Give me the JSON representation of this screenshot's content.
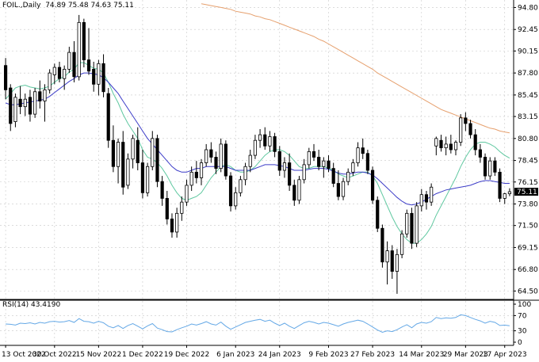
{
  "header": {
    "symbol": "FOIL.",
    "timeframe": "Daily",
    "open": "74.89",
    "high": "75.48",
    "low": "74.63",
    "close": "75.11"
  },
  "rsi_header": {
    "label": "RSI(14)",
    "value": "43.4190"
  },
  "colors": {
    "background": "#ffffff",
    "grid": "#c8c8c8",
    "candle": "#000000",
    "ma_fast": "#5fc8a0",
    "ma_mid": "#3c3cc8",
    "ma_slow": "#e6a06e",
    "rsi_line": "#64a8e6",
    "current_price_tag": "#000000"
  },
  "chart_data": [
    {
      "type": "candlestick",
      "title": "FOIL., Daily",
      "current_price_label": "75.11",
      "y_ticks": [
        "94.80",
        "92.45",
        "90.15",
        "87.80",
        "85.45",
        "83.15",
        "80.80",
        "78.45",
        "76.15",
        "73.80",
        "71.50",
        "69.15",
        "66.80",
        "64.50"
      ],
      "x_ticks": [
        "13 Oct 2022",
        "30 Oct 2022",
        "15 Nov 2022",
        "1 Dec 2022",
        "19 Dec 2022",
        "6 Jan 2023",
        "24 Jan 2023",
        "9 Feb 2023",
        "27 Feb 2023",
        "14 Mar 2023",
        "29 Mar 2023",
        "17 Apr 2023"
      ],
      "ylim": [
        63.6,
        95.6
      ],
      "grid": true,
      "candles": [
        [
          88.6,
          89.4,
          85.0,
          86.0
        ],
        [
          86.2,
          86.6,
          81.6,
          82.4
        ],
        [
          82.6,
          85.6,
          82.0,
          85.2
        ],
        [
          85.0,
          86.4,
          83.4,
          84.2
        ],
        [
          84.2,
          85.6,
          83.2,
          85.0
        ],
        [
          85.2,
          86.0,
          82.6,
          83.4
        ],
        [
          83.4,
          86.2,
          83.0,
          85.8
        ],
        [
          85.8,
          87.0,
          84.0,
          84.8
        ],
        [
          84.8,
          86.6,
          82.6,
          86.0
        ],
        [
          86.0,
          88.2,
          85.6,
          87.8
        ],
        [
          87.6,
          88.8,
          86.6,
          88.4
        ],
        [
          88.4,
          89.0,
          86.8,
          87.2
        ],
        [
          87.2,
          88.6,
          86.0,
          88.2
        ],
        [
          88.2,
          90.6,
          87.8,
          90.0
        ],
        [
          90.0,
          91.2,
          86.8,
          87.4
        ],
        [
          87.4,
          94.0,
          87.0,
          93.2
        ],
        [
          93.2,
          93.6,
          88.4,
          89.2
        ],
        [
          89.2,
          92.6,
          87.6,
          88.0
        ],
        [
          88.2,
          89.0,
          85.8,
          86.6
        ],
        [
          86.6,
          89.2,
          85.4,
          88.8
        ],
        [
          88.8,
          89.8,
          85.2,
          85.8
        ],
        [
          85.6,
          86.2,
          79.8,
          80.6
        ],
        [
          80.6,
          82.2,
          77.2,
          77.8
        ],
        [
          77.8,
          80.8,
          76.0,
          80.4
        ],
        [
          80.4,
          81.6,
          74.8,
          75.6
        ],
        [
          75.8,
          79.2,
          75.4,
          78.6
        ],
        [
          78.6,
          81.2,
          77.6,
          80.8
        ],
        [
          80.6,
          82.0,
          77.4,
          78.2
        ],
        [
          78.2,
          79.6,
          74.4,
          75.0
        ],
        [
          75.0,
          78.2,
          74.6,
          77.8
        ],
        [
          77.8,
          81.6,
          77.4,
          80.8
        ],
        [
          80.8,
          81.2,
          75.6,
          76.2
        ],
        [
          76.2,
          76.8,
          73.6,
          74.4
        ],
        [
          74.4,
          75.2,
          71.6,
          72.2
        ],
        [
          72.2,
          72.8,
          70.2,
          70.8
        ],
        [
          70.8,
          73.4,
          70.2,
          72.8
        ],
        [
          72.8,
          74.6,
          72.0,
          74.0
        ],
        [
          74.0,
          76.4,
          73.6,
          75.8
        ],
        [
          75.8,
          77.8,
          75.2,
          77.2
        ],
        [
          77.2,
          78.4,
          76.0,
          76.6
        ],
        [
          76.6,
          78.6,
          75.8,
          78.2
        ],
        [
          78.2,
          80.2,
          77.8,
          79.6
        ],
        [
          79.6,
          80.4,
          78.2,
          78.8
        ],
        [
          78.8,
          79.4,
          77.0,
          77.6
        ],
        [
          77.6,
          80.8,
          77.2,
          80.2
        ],
        [
          80.2,
          80.6,
          76.4,
          76.8
        ],
        [
          76.8,
          77.2,
          73.0,
          73.6
        ],
        [
          73.6,
          75.6,
          73.2,
          75.0
        ],
        [
          75.0,
          76.8,
          74.6,
          76.4
        ],
        [
          76.4,
          78.2,
          75.8,
          77.8
        ],
        [
          77.8,
          79.6,
          77.2,
          79.0
        ],
        [
          79.0,
          81.2,
          78.6,
          80.6
        ],
        [
          80.6,
          81.8,
          79.8,
          81.2
        ],
        [
          81.2,
          82.0,
          79.6,
          80.0
        ],
        [
          80.0,
          81.6,
          79.4,
          81.0
        ],
        [
          81.0,
          81.4,
          78.8,
          79.4
        ],
        [
          79.4,
          80.0,
          76.8,
          77.4
        ],
        [
          77.4,
          78.8,
          76.6,
          78.2
        ],
        [
          78.2,
          79.2,
          75.2,
          75.8
        ],
        [
          75.8,
          76.4,
          73.6,
          74.2
        ],
        [
          74.2,
          76.8,
          73.8,
          76.4
        ],
        [
          76.4,
          78.6,
          76.0,
          78.0
        ],
        [
          78.0,
          79.8,
          77.6,
          79.4
        ],
        [
          79.4,
          80.2,
          78.4,
          78.8
        ],
        [
          78.8,
          79.6,
          77.4,
          77.8
        ],
        [
          77.8,
          78.8,
          76.6,
          78.4
        ],
        [
          78.4,
          79.0,
          77.2,
          77.6
        ],
        [
          77.6,
          78.2,
          75.6,
          76.0
        ],
        [
          76.0,
          77.4,
          74.2,
          74.6
        ],
        [
          74.6,
          76.6,
          74.2,
          76.2
        ],
        [
          76.2,
          77.6,
          75.8,
          77.2
        ],
        [
          77.2,
          78.6,
          76.8,
          78.2
        ],
        [
          78.2,
          80.4,
          77.8,
          79.8
        ],
        [
          79.8,
          80.8,
          78.6,
          79.2
        ],
        [
          79.2,
          79.6,
          77.0,
          77.4
        ],
        [
          77.4,
          77.8,
          73.8,
          74.2
        ],
        [
          74.2,
          74.6,
          70.8,
          71.2
        ],
        [
          71.2,
          71.6,
          67.0,
          67.6
        ],
        [
          67.6,
          69.8,
          65.2,
          68.8
        ],
        [
          68.8,
          69.4,
          65.8,
          66.6
        ],
        [
          66.6,
          69.0,
          64.2,
          68.4
        ],
        [
          68.4,
          71.0,
          68.0,
          70.6
        ],
        [
          70.6,
          73.2,
          70.2,
          72.8
        ],
        [
          72.8,
          73.4,
          69.0,
          69.6
        ],
        [
          69.6,
          74.0,
          69.2,
          73.6
        ],
        [
          73.6,
          75.4,
          73.0,
          74.8
        ],
        [
          74.8,
          75.2,
          73.2,
          74.0
        ],
        [
          74.0,
          76.0,
          73.6,
          75.6
        ],
        [
          80.0,
          81.0,
          79.0,
          80.8
        ],
        [
          80.6,
          81.2,
          79.4,
          79.8
        ],
        [
          79.8,
          81.0,
          79.0,
          80.2
        ],
        [
          80.2,
          81.2,
          79.2,
          79.6
        ],
        [
          79.6,
          80.6,
          79.0,
          80.4
        ],
        [
          80.4,
          83.4,
          80.0,
          83.0
        ],
        [
          83.0,
          83.6,
          81.6,
          82.4
        ],
        [
          82.4,
          82.8,
          80.8,
          81.2
        ],
        [
          81.2,
          81.8,
          79.0,
          79.6
        ],
        [
          79.6,
          80.2,
          78.2,
          78.8
        ],
        [
          78.8,
          79.2,
          76.4,
          76.8
        ],
        [
          76.8,
          78.8,
          76.4,
          78.4
        ],
        [
          78.4,
          78.8,
          76.8,
          77.2
        ],
        [
          77.2,
          77.6,
          74.0,
          74.4
        ],
        [
          74.4,
          75.0,
          73.8,
          74.9
        ],
        [
          74.89,
          75.48,
          74.63,
          75.11
        ]
      ],
      "series": [
        {
          "name": "MA fast",
          "color": "#5fc8a0",
          "values": [
            85.0,
            85.6,
            86.2,
            86.4,
            86.5,
            86.3,
            86.2,
            86.1,
            86.2,
            86.4,
            86.8,
            87.2,
            87.4,
            87.9,
            88.2,
            88.9,
            88.9,
            88.6,
            88.3,
            88.2,
            87.8,
            86.8,
            85.6,
            84.6,
            83.4,
            82.4,
            81.6,
            80.8,
            79.6,
            78.8,
            78.6,
            78.2,
            77.6,
            76.8,
            75.8,
            75.0,
            74.4,
            74.2,
            74.4,
            74.6,
            75.0,
            75.8,
            76.6,
            77.2,
            77.8,
            78.0,
            77.8,
            77.4,
            77.2,
            77.2,
            77.4,
            77.8,
            78.4,
            79.0,
            79.4,
            79.6,
            79.6,
            79.4,
            79.0,
            78.4,
            77.8,
            77.6,
            77.6,
            77.8,
            77.8,
            77.8,
            77.6,
            77.4,
            77.0,
            76.8,
            76.6,
            76.8,
            77.0,
            77.2,
            77.2,
            76.8,
            76.0,
            74.8,
            73.6,
            72.4,
            71.4,
            70.6,
            70.0,
            69.6,
            69.6,
            70.0,
            70.6,
            71.4,
            72.6,
            73.6,
            74.6,
            75.6,
            76.6,
            77.8,
            78.8,
            79.6,
            80.2,
            80.4,
            80.4,
            80.2,
            79.9,
            79.4,
            79.0,
            78.7
          ]
        },
        {
          "name": "MA mid",
          "color": "#3c3cc8",
          "values": [
            84.6,
            84.4,
            84.4,
            84.5,
            84.6,
            84.7,
            84.8,
            84.9,
            85.0,
            85.3,
            85.7,
            86.1,
            86.5,
            86.9,
            87.2,
            87.6,
            87.8,
            87.8,
            87.7,
            87.6,
            87.3,
            86.8,
            86.2,
            85.6,
            84.8,
            84.0,
            83.2,
            82.4,
            81.6,
            80.8,
            80.2,
            79.6,
            79.0,
            78.4,
            77.8,
            77.4,
            77.2,
            77.2,
            77.4,
            77.6,
            77.6,
            77.8,
            77.8,
            77.8,
            77.8,
            77.8,
            77.6,
            77.4,
            77.4,
            77.4,
            77.4,
            77.6,
            77.8,
            78.0,
            78.0,
            78.0,
            77.9,
            77.8,
            77.6,
            77.4,
            77.4,
            77.4,
            77.5,
            77.6,
            77.6,
            77.6,
            77.5,
            77.3,
            77.1,
            77.0,
            77.0,
            77.1,
            77.2,
            77.2,
            77.1,
            76.9,
            76.5,
            76.0,
            75.5,
            75.0,
            74.5,
            74.1,
            73.8,
            73.7,
            73.8,
            74.0,
            74.3,
            74.6,
            74.9,
            75.1,
            75.3,
            75.4,
            75.5,
            75.6,
            75.7,
            75.8,
            76.0,
            76.2,
            76.3,
            76.3,
            76.2,
            76.1,
            76.0,
            76.0
          ]
        },
        {
          "name": "MA slow",
          "color": "#e6a06e",
          "values": [
            null,
            null,
            null,
            null,
            null,
            null,
            null,
            null,
            null,
            null,
            null,
            null,
            null,
            null,
            null,
            null,
            null,
            null,
            null,
            null,
            null,
            null,
            null,
            null,
            null,
            null,
            null,
            null,
            null,
            null,
            null,
            null,
            null,
            null,
            null,
            null,
            null,
            null,
            null,
            null,
            95.2,
            95.1,
            95.0,
            94.9,
            94.8,
            94.7,
            94.6,
            94.4,
            94.3,
            94.2,
            94.1,
            93.9,
            93.8,
            93.6,
            93.5,
            93.3,
            93.1,
            92.9,
            92.7,
            92.5,
            92.3,
            92.1,
            91.9,
            91.7,
            91.4,
            91.2,
            90.9,
            90.6,
            90.3,
            90.0,
            89.7,
            89.4,
            89.1,
            88.8,
            88.5,
            88.2,
            87.8,
            87.5,
            87.2,
            86.9,
            86.6,
            86.3,
            86.0,
            85.7,
            85.4,
            85.1,
            84.8,
            84.5,
            84.2,
            83.9,
            83.7,
            83.5,
            83.3,
            83.1,
            82.9,
            82.7,
            82.5,
            82.3,
            82.1,
            81.9,
            81.8,
            81.6,
            81.5,
            81.4
          ]
        }
      ]
    },
    {
      "type": "line",
      "title": "RSI(14) 43.4190",
      "ylim": [
        0,
        100
      ],
      "y_ticks": [
        "100",
        "70",
        "30",
        "0"
      ],
      "grid": true,
      "series": [
        {
          "name": "RSI(14)",
          "color": "#64a8e6",
          "values": [
            48,
            47,
            45,
            50,
            49,
            51,
            48,
            52,
            50,
            54,
            55,
            53,
            54,
            57,
            52,
            62,
            55,
            54,
            50,
            55,
            51,
            42,
            38,
            44,
            36,
            44,
            49,
            42,
            35,
            43,
            49,
            37,
            33,
            28,
            27,
            33,
            38,
            42,
            48,
            45,
            49,
            54,
            48,
            45,
            53,
            42,
            34,
            40,
            46,
            52,
            55,
            58,
            60,
            55,
            58,
            50,
            44,
            50,
            42,
            36,
            44,
            51,
            55,
            52,
            48,
            52,
            50,
            46,
            42,
            48,
            52,
            55,
            58,
            55,
            48,
            40,
            32,
            26,
            30,
            28,
            33,
            40,
            46,
            38,
            48,
            52,
            50,
            54,
            65,
            62,
            64,
            63,
            65,
            72,
            70,
            65,
            60,
            56,
            50,
            55,
            52,
            44,
            45,
            43.4
          ]
        }
      ]
    }
  ]
}
